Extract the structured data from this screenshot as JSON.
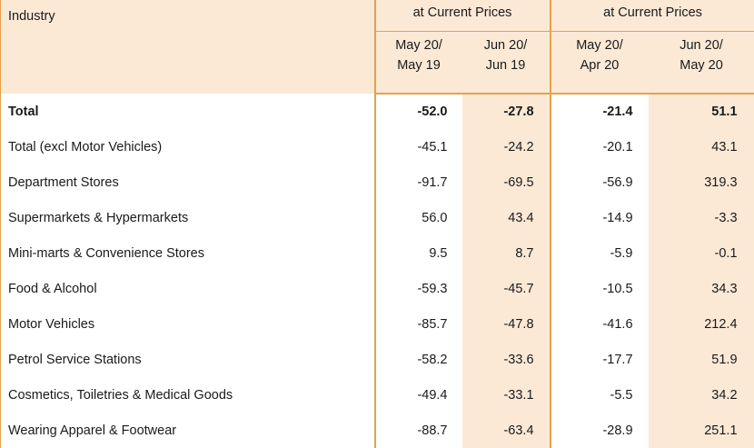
{
  "header": {
    "industry_label": "Industry",
    "group1_label": "at Current Prices",
    "group2_label": "at Current Prices",
    "col1": [
      "May 20/",
      "May 19"
    ],
    "col2": [
      "Jun 20/",
      "Jun 19"
    ],
    "col3": [
      "May 20/",
      "Apr 20"
    ],
    "col4": [
      "Jun 20/",
      "May 20"
    ]
  },
  "rows": [
    {
      "industry": "Total",
      "v1": "-52.0",
      "v2": "-27.8",
      "v3": "-21.4",
      "v4": "51.1"
    },
    {
      "industry": "Total (excl Motor Vehicles)",
      "v1": "-45.1",
      "v2": "-24.2",
      "v3": "-20.1",
      "v4": "43.1"
    },
    {
      "industry": "Department Stores",
      "v1": "-91.7",
      "v2": "-69.5",
      "v3": "-56.9",
      "v4": "319.3"
    },
    {
      "industry": "Supermarkets & Hypermarkets",
      "v1": "56.0",
      "v2": "43.4",
      "v3": "-14.9",
      "v4": "-3.3"
    },
    {
      "industry": "Mini-marts & Convenience Stores",
      "v1": "9.5",
      "v2": "8.7",
      "v3": "-5.9",
      "v4": "-0.1"
    },
    {
      "industry": "Food & Alcohol",
      "v1": "-59.3",
      "v2": "-45.7",
      "v3": "-10.5",
      "v4": "34.3"
    },
    {
      "industry": "Motor Vehicles",
      "v1": "-85.7",
      "v2": "-47.8",
      "v3": "-41.6",
      "v4": "212.4"
    },
    {
      "industry": "Petrol Service Stations",
      "v1": "-58.2",
      "v2": "-33.6",
      "v3": "-17.7",
      "v4": "51.9"
    },
    {
      "industry": "Cosmetics, Toiletries & Medical Goods",
      "v1": "-49.4",
      "v2": "-33.1",
      "v3": "-5.5",
      "v4": "34.2"
    },
    {
      "industry": "Wearing Apparel & Footwear",
      "v1": "-88.7",
      "v2": "-63.4",
      "v3": "-28.9",
      "v4": "251.1"
    }
  ]
}
